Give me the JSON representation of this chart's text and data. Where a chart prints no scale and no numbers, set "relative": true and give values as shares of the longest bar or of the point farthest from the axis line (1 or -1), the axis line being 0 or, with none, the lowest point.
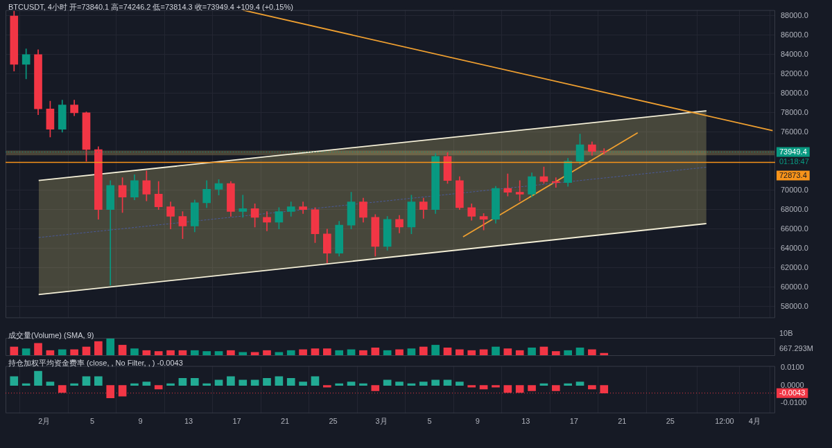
{
  "chart_data": [
    {
      "type": "candlestick",
      "title": "BTCUSDT, 4小时 开=73840.1 高=74246.2 低=73814.3 收=73949.4 +109.4 (+0.15%)",
      "x": [
        "--01-29T12:00",
        "--01-30T12:00",
        "--01-31T12:00",
        "--02-01T12:00",
        "--02-02T12:00",
        "--02-03T12:00",
        "--02-04T12:00",
        "--02-05T12:00",
        "--02-06T12:00",
        "--02-07T12:00",
        "--02-08T12:00",
        "--02-09T12:00",
        "--02-10T12:00",
        "--02-11T12:00",
        "--02-12T12:00",
        "--02-13T12:00",
        "--02-14T12:00",
        "--02-15T12:00",
        "--02-16T12:00",
        "--02-17T12:00",
        "--02-18T12:00",
        "--02-19T12:00",
        "--02-20T12:00",
        "--02-21T12:00",
        "--02-22T12:00",
        "--02-23T12:00",
        "--02-24T12:00",
        "--02-25T12:00",
        "--02-26T12:00",
        "--02-27T12:00",
        "--02-28T12:00",
        "--03-01T12:00",
        "--03-02T12:00",
        "--03-03T12:00",
        "--03-04T12:00",
        "--03-05T12:00",
        "--03-06T12:00",
        "--03-07T12:00",
        "--03-08T12:00",
        "--03-09T12:00",
        "--03-10T12:00",
        "--03-11T12:00",
        "--03-12T12:00",
        "--03-13T12:00",
        "--03-14T12:00",
        "--03-15T12:00",
        "--03-16T12:00",
        "--03-17T12:00",
        "--03-18T12:00",
        "--03-19T12:00"
      ],
      "ohlc": [
        [
          88000,
          88500,
          82300,
          83000
        ],
        [
          83000,
          84600,
          81500,
          84000
        ],
        [
          84000,
          84500,
          77800,
          78400
        ],
        [
          78400,
          79200,
          75500,
          76300
        ],
        [
          76300,
          79300,
          76000,
          78800
        ],
        [
          78800,
          79300,
          77700,
          78000
        ],
        [
          78000,
          78100,
          73000,
          74200
        ],
        [
          74200,
          74500,
          67000,
          68000
        ],
        [
          68000,
          71000,
          60200,
          70500
        ],
        [
          70500,
          71300,
          67700,
          69300
        ],
        [
          69300,
          71600,
          69000,
          71000
        ],
        [
          71000,
          72000,
          68900,
          69600
        ],
        [
          69600,
          70900,
          68000,
          68300
        ],
        [
          68300,
          68800,
          66000,
          67300
        ],
        [
          67300,
          67800,
          65000,
          66300
        ],
        [
          66300,
          69000,
          65700,
          68700
        ],
        [
          68700,
          71000,
          68200,
          70100
        ],
        [
          70100,
          71100,
          69500,
          70700
        ],
        [
          70700,
          70900,
          67300,
          67800
        ],
        [
          67800,
          69500,
          67200,
          68100
        ],
        [
          68100,
          68600,
          66200,
          67200
        ],
        [
          67200,
          67800,
          65800,
          66700
        ],
        [
          66700,
          68200,
          66000,
          67800
        ],
        [
          67800,
          68800,
          67300,
          68300
        ],
        [
          68300,
          68800,
          67600,
          68000
        ],
        [
          68000,
          68200,
          64600,
          65500
        ],
        [
          65500,
          66000,
          62500,
          63500
        ],
        [
          63500,
          66800,
          63200,
          66400
        ],
        [
          66400,
          69800,
          66000,
          68800
        ],
        [
          68800,
          69200,
          66700,
          67200
        ],
        [
          67200,
          67500,
          63200,
          64200
        ],
        [
          64200,
          67300,
          63800,
          67000
        ],
        [
          67000,
          67400,
          65600,
          66200
        ],
        [
          66200,
          69500,
          65500,
          68800
        ],
        [
          68800,
          69200,
          67100,
          68000
        ],
        [
          68000,
          73800,
          67600,
          73500
        ],
        [
          73500,
          73900,
          70700,
          71000
        ],
        [
          71000,
          71400,
          68000,
          68200
        ],
        [
          68200,
          68600,
          66900,
          67300
        ],
        [
          67300,
          67600,
          65900,
          67000
        ],
        [
          67000,
          70400,
          66600,
          70200
        ],
        [
          70200,
          71700,
          69400,
          69800
        ],
        [
          69800,
          71000,
          68900,
          69600
        ],
        [
          69600,
          71800,
          69300,
          71400
        ],
        [
          71400,
          72400,
          70700,
          70900
        ],
        [
          70900,
          71300,
          70300,
          70800
        ],
        [
          70800,
          73300,
          70400,
          73000
        ],
        [
          73000,
          75800,
          72700,
          74700
        ],
        [
          74700,
          75000,
          73600,
          74000
        ],
        [
          74000,
          74300,
          73700,
          73949.4
        ]
      ],
      "colors": [
        "#f23645",
        "#089981",
        "#f23645",
        "#f23645",
        "#089981",
        "#f23645",
        "#f23645",
        "#f23645",
        "#089981",
        "#f23645",
        "#089981",
        "#f23645",
        "#f23645",
        "#f23645",
        "#f23645",
        "#089981",
        "#089981",
        "#089981",
        "#f23645",
        "#089981",
        "#f23645",
        "#f23645",
        "#089981",
        "#089981",
        "#f23645",
        "#f23645",
        "#f23645",
        "#089981",
        "#089981",
        "#f23645",
        "#f23645",
        "#089981",
        "#f23645",
        "#089981",
        "#f23645",
        "#089981",
        "#f23645",
        "#f23645",
        "#f23645",
        "#f23645",
        "#089981",
        "#f23645",
        "#f23645",
        "#089981",
        "#f23645",
        "#f23645",
        "#089981",
        "#089981",
        "#f23645",
        "#f23645"
      ],
      "series": [
        {
          "type": "line",
          "x": [
            "--02-17T12:00",
            "--04-02T12:00"
          ],
          "values": [
            88600,
            76150
          ],
          "color": "#f0a030"
        },
        {
          "type": "line",
          "x": [
            "--01-31T13:00",
            "--03-28T00:00"
          ],
          "values": [
            71010,
            78200
          ],
          "color": "#f5f0d8"
        },
        {
          "type": "line",
          "x": [
            "--01-31T13:00",
            "--03-28T00:00"
          ],
          "values": [
            59230,
            66560
          ],
          "color": "#f5f0d8"
        },
        {
          "type": "line",
          "x": [
            "--01-31T13:00",
            "--03-28T00:00"
          ],
          "values": [
            65120,
            72380
          ],
          "lower": [
            59230,
            66560
          ],
          "upper": [
            71010,
            78200
          ],
          "color": "#4a5a9a",
          "line_style": "dashed"
        },
        {
          "type": "line",
          "x": [
            "--03-07T19:00",
            "--03-22T07:00"
          ],
          "values": [
            65190,
            75940
          ],
          "color": "#f0a030"
        }
      ],
      "ref_lines": [
        {
          "axis": "y",
          "value": 73949.4,
          "label": "73949.4",
          "color": "#089981",
          "line_style": "dotted"
        },
        {
          "axis": "y",
          "value": 72873.4,
          "label": "72873.4",
          "color": "#f7931a"
        }
      ],
      "bands": [
        {
          "axis": "y",
          "from": 73620,
          "to": 74100,
          "color": "#8a7a50"
        }
      ],
      "annotations": [
        "01:18:47"
      ],
      "xlim": [
        "--01-28T19:00",
        "--04-02T17:00"
      ],
      "ylim": [
        56800,
        88600
      ],
      "xticks": [
        {
          "value": "--02-01",
          "label": "2月"
        },
        {
          "value": "--02-05",
          "label": "5"
        },
        {
          "value": "--02-09",
          "label": "9"
        },
        {
          "value": "--02-13",
          "label": "13"
        },
        {
          "value": "--02-17",
          "label": "17"
        },
        {
          "value": "--02-21",
          "label": "21"
        },
        {
          "value": "--02-25",
          "label": "25"
        },
        {
          "value": "--03-01",
          "label": "3月"
        },
        {
          "value": "--03-05",
          "label": "5"
        },
        {
          "value": "--03-09",
          "label": "9"
        },
        {
          "value": "--03-13",
          "label": "13"
        },
        {
          "value": "--03-17",
          "label": "17"
        },
        {
          "value": "--03-21",
          "label": "21"
        },
        {
          "value": "--03-25",
          "label": "25"
        },
        {
          "value": "--03-29T12:00",
          "label": "12:00"
        },
        {
          "value": "--04-01",
          "label": "4月"
        }
      ],
      "yticks": [
        {
          "value": 58000,
          "label": "58000.0"
        },
        {
          "value": 60000,
          "label": "60000.0"
        },
        {
          "value": 62000,
          "label": "62000.0"
        },
        {
          "value": 64000,
          "label": "64000.0"
        },
        {
          "value": 66000,
          "label": "66000.0"
        },
        {
          "value": 68000,
          "label": "68000.0"
        },
        {
          "value": 70000,
          "label": "70000.0"
        },
        {
          "value": 76000,
          "label": "76000.0"
        },
        {
          "value": 78000,
          "label": "78000.0"
        },
        {
          "value": 80000,
          "label": "80000.0"
        },
        {
          "value": 82000,
          "label": "82000.0"
        },
        {
          "value": 84000,
          "label": "84000.0"
        },
        {
          "value": 86000,
          "label": "86000.0"
        },
        {
          "value": 88000,
          "label": "88000.0"
        }
      ],
      "grid": true,
      "tick_labels": "y"
    },
    {
      "type": "bar",
      "title": "成交量(Volume) (SMA, 9)",
      "relative": true,
      "x": [
        "--01-29T12:00",
        "--01-30T12:00",
        "--01-31T12:00",
        "--02-01T12:00",
        "--02-02T12:00",
        "--02-03T12:00",
        "--02-04T12:00",
        "--02-05T12:00",
        "--02-06T12:00",
        "--02-07T12:00",
        "--02-08T12:00",
        "--02-09T12:00",
        "--02-10T12:00",
        "--02-11T12:00",
        "--02-12T12:00",
        "--02-13T12:00",
        "--02-14T12:00",
        "--02-15T12:00",
        "--02-16T12:00",
        "--02-17T12:00",
        "--02-18T12:00",
        "--02-19T12:00",
        "--02-20T12:00",
        "--02-21T12:00",
        "--02-22T12:00",
        "--02-23T12:00",
        "--02-24T12:00",
        "--02-25T12:00",
        "--02-26T12:00",
        "--02-27T12:00",
        "--02-28T12:00",
        "--03-01T12:00",
        "--03-02T12:00",
        "--03-03T12:00",
        "--03-04T12:00",
        "--03-05T12:00",
        "--03-06T12:00",
        "--03-07T12:00",
        "--03-08T12:00",
        "--03-09T12:00",
        "--03-10T12:00",
        "--03-11T12:00",
        "--03-12T12:00",
        "--03-13T12:00",
        "--03-14T12:00",
        "--03-15T12:00",
        "--03-16T12:00",
        "--03-17T12:00",
        "--03-18T12:00",
        "--03-19T12:00"
      ],
      "values": [
        0.5,
        0.4,
        0.7,
        0.3,
        0.35,
        0.35,
        0.5,
        0.8,
        1.0,
        0.6,
        0.4,
        0.3,
        0.25,
        0.3,
        0.3,
        0.3,
        0.25,
        0.25,
        0.3,
        0.2,
        0.2,
        0.3,
        0.2,
        0.3,
        0.35,
        0.4,
        0.4,
        0.3,
        0.35,
        0.3,
        0.45,
        0.3,
        0.35,
        0.4,
        0.5,
        0.6,
        0.45,
        0.35,
        0.3,
        0.35,
        0.5,
        0.4,
        0.3,
        0.45,
        0.5,
        0.25,
        0.3,
        0.45,
        0.35,
        0.15
      ],
      "colors": [
        "#f23645",
        "#089981",
        "#f23645",
        "#f23645",
        "#089981",
        "#f23645",
        "#f23645",
        "#f23645",
        "#089981",
        "#f23645",
        "#089981",
        "#f23645",
        "#f23645",
        "#f23645",
        "#f23645",
        "#089981",
        "#089981",
        "#089981",
        "#f23645",
        "#089981",
        "#f23645",
        "#f23645",
        "#089981",
        "#089981",
        "#f23645",
        "#f23645",
        "#f23645",
        "#089981",
        "#089981",
        "#f23645",
        "#f23645",
        "#089981",
        "#f23645",
        "#089981",
        "#f23645",
        "#089981",
        "#f23645",
        "#f23645",
        "#f23645",
        "#f23645",
        "#089981",
        "#f23645",
        "#f23645",
        "#089981",
        "#f23645",
        "#f23645",
        "#089981",
        "#089981",
        "#f23645",
        "#f23645"
      ],
      "annotations": [
        "10B",
        "667.293M"
      ],
      "xlim": [
        "--01-28T19:00",
        "--04-02T17:00"
      ],
      "grid": "x",
      "tick_labels": false
    },
    {
      "type": "bar",
      "title": "持仓加权平均资金费率 (close, , No Filter, , ) -0.0043",
      "x": [
        "--01-29T12:00",
        "--01-30T12:00",
        "--01-31T12:00",
        "--02-01T12:00",
        "--02-02T12:00",
        "--02-03T12:00",
        "--02-04T12:00",
        "--02-05T12:00",
        "--02-06T12:00",
        "--02-07T12:00",
        "--02-08T12:00",
        "--02-09T12:00",
        "--02-10T12:00",
        "--02-11T12:00",
        "--02-12T12:00",
        "--02-13T12:00",
        "--02-14T12:00",
        "--02-15T12:00",
        "--02-16T12:00",
        "--02-17T12:00",
        "--02-18T12:00",
        "--02-19T12:00",
        "--02-20T12:00",
        "--02-21T12:00",
        "--02-22T12:00",
        "--02-23T12:00",
        "--02-24T12:00",
        "--02-25T12:00",
        "--02-26T12:00",
        "--02-27T12:00",
        "--02-28T12:00",
        "--03-01T12:00",
        "--03-02T12:00",
        "--03-03T12:00",
        "--03-04T12:00",
        "--03-05T12:00",
        "--03-06T12:00",
        "--03-07T12:00",
        "--03-08T12:00",
        "--03-09T12:00",
        "--03-10T12:00",
        "--03-11T12:00",
        "--03-12T12:00",
        "--03-13T12:00",
        "--03-14T12:00",
        "--03-15T12:00",
        "--03-16T12:00",
        "--03-17T12:00",
        "--03-18T12:00",
        "--03-19T12:00"
      ],
      "values": [
        0.005,
        0.001,
        0.008,
        0.002,
        -0.004,
        0.001,
        0.005,
        0.005,
        -0.007,
        -0.006,
        0.001,
        0.002,
        -0.002,
        0.001,
        0.004,
        0.004,
        0.001,
        0.003,
        0.005,
        0.003,
        0.003,
        0.004,
        0.005,
        0.004,
        0.002,
        0.005,
        -0.001,
        0.001,
        0.002,
        0.001,
        -0.003,
        0.003,
        0.002,
        0.001,
        0.002,
        0.003,
        0.003,
        0.002,
        -0.001,
        -0.002,
        -0.001,
        -0.004,
        -0.004,
        -0.003,
        0.001,
        -0.003,
        0.001,
        0.002,
        -0.002,
        -0.0043
      ],
      "colors": [
        "#22ab94",
        "#22ab94",
        "#22ab94",
        "#22ab94",
        "#f23645",
        "#22ab94",
        "#22ab94",
        "#22ab94",
        "#f23645",
        "#f23645",
        "#22ab94",
        "#22ab94",
        "#f23645",
        "#22ab94",
        "#22ab94",
        "#22ab94",
        "#22ab94",
        "#22ab94",
        "#22ab94",
        "#22ab94",
        "#22ab94",
        "#22ab94",
        "#22ab94",
        "#22ab94",
        "#22ab94",
        "#22ab94",
        "#f23645",
        "#22ab94",
        "#22ab94",
        "#22ab94",
        "#f23645",
        "#22ab94",
        "#22ab94",
        "#22ab94",
        "#22ab94",
        "#22ab94",
        "#22ab94",
        "#22ab94",
        "#f23645",
        "#f23645",
        "#f23645",
        "#f23645",
        "#f23645",
        "#f23645",
        "#22ab94",
        "#f23645",
        "#22ab94",
        "#22ab94",
        "#f23645",
        "#f23645"
      ],
      "ref_lines": [
        {
          "axis": "y",
          "value": -0.0043,
          "label": "-0.0043",
          "color": "#f23645",
          "line_style": "dotted"
        }
      ],
      "xlim": [
        "--01-28T19:00",
        "--04-02T17:00"
      ],
      "ylim": [
        -0.0156,
        0.0109
      ],
      "xticks": [
        {
          "value": "--02-01",
          "label": "2月"
        },
        {
          "value": "--02-05",
          "label": "5"
        },
        {
          "value": "--02-09",
          "label": "9"
        },
        {
          "value": "--02-13",
          "label": "13"
        },
        {
          "value": "--02-17",
          "label": "17"
        },
        {
          "value": "--02-21",
          "label": "21"
        },
        {
          "value": "--02-25",
          "label": "25"
        },
        {
          "value": "--03-01",
          "label": "3月"
        },
        {
          "value": "--03-05",
          "label": "5"
        },
        {
          "value": "--03-09",
          "label": "9"
        },
        {
          "value": "--03-13",
          "label": "13"
        },
        {
          "value": "--03-17",
          "label": "17"
        },
        {
          "value": "--03-21",
          "label": "21"
        },
        {
          "value": "--03-25",
          "label": "25"
        },
        {
          "value": "--03-29T12:00",
          "label": "12:00"
        },
        {
          "value": "--04-01",
          "label": "4月"
        }
      ],
      "yticks": [
        {
          "value": -0.01,
          "label": "-0.0100"
        },
        {
          "value": 0,
          "label": "0.0000"
        },
        {
          "value": 0.01,
          "label": "0.0100"
        }
      ],
      "grid": "x"
    }
  ]
}
